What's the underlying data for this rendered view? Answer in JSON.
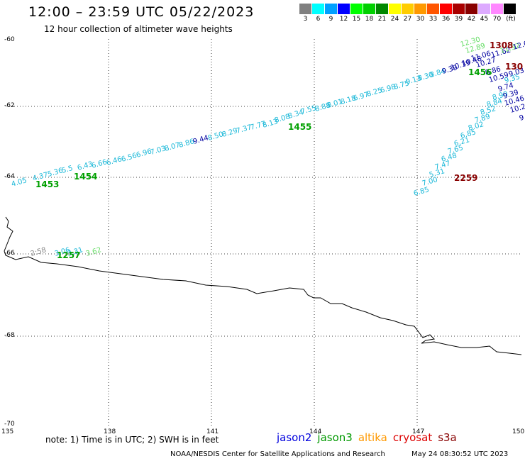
{
  "header": {
    "title": "12:00 – 23:59 UTC 05/22/2023",
    "subtitle": "12 hour collection of altimeter wave heights"
  },
  "legend": {
    "unit": "(ft)",
    "items": [
      {
        "label": "3",
        "color": "#808080"
      },
      {
        "label": "6",
        "color": "#00ffff"
      },
      {
        "label": "9",
        "color": "#00a0ff"
      },
      {
        "label": "12",
        "color": "#0000ff"
      },
      {
        "label": "15",
        "color": "#00ff00"
      },
      {
        "label": "18",
        "color": "#00d000"
      },
      {
        "label": "21",
        "color": "#008800"
      },
      {
        "label": "24",
        "color": "#ffff00"
      },
      {
        "label": "27",
        "color": "#ffcc00"
      },
      {
        "label": "30",
        "color": "#ff9900"
      },
      {
        "label": "33",
        "color": "#ff5500"
      },
      {
        "label": "36",
        "color": "#ff0000"
      },
      {
        "label": "39",
        "color": "#aa0000"
      },
      {
        "label": "42",
        "color": "#880000"
      },
      {
        "label": "45",
        "color": "#ddaaff"
      },
      {
        "label": "70",
        "color": "#ff88ff"
      },
      {
        "label": "",
        "color": "#000000"
      }
    ]
  },
  "axes": {
    "lat_labels": [
      "-60",
      "-62",
      "-64",
      "-66",
      "-68",
      "-70"
    ],
    "lon_labels": [
      "135",
      "138",
      "141",
      "144",
      "147",
      "150"
    ]
  },
  "track_colors": {
    "cyan": "#1ab8d8",
    "darkblue": "#0000a0",
    "green": "#00a000",
    "lightgreen": "#66dd66",
    "darkred": "#880000",
    "gray": "#888888"
  },
  "tracks": [
    {
      "text": "4.05",
      "color": "cyan"
    },
    {
      "text": "4.37",
      "color": "cyan"
    },
    {
      "text": "5.36",
      "color": "cyan"
    },
    {
      "text": "5.5",
      "color": "cyan"
    },
    {
      "text": "6.43",
      "color": "cyan"
    },
    {
      "text": "6.66",
      "color": "cyan"
    },
    {
      "text": "6.46",
      "color": "cyan"
    },
    {
      "text": "6.56",
      "color": "cyan"
    },
    {
      "text": "6.96",
      "color": "cyan"
    },
    {
      "text": "7.03",
      "color": "cyan"
    },
    {
      "text": "8.07",
      "color": "cyan"
    },
    {
      "text": "8.86",
      "color": "cyan"
    },
    {
      "text": "9.44",
      "color": "darkblue"
    },
    {
      "text": "8.50",
      "color": "cyan"
    },
    {
      "text": "8.29",
      "color": "cyan"
    },
    {
      "text": "7.37",
      "color": "cyan"
    },
    {
      "text": "7.77",
      "color": "cyan"
    },
    {
      "text": "8.13",
      "color": "cyan"
    },
    {
      "text": "8.08",
      "color": "cyan"
    },
    {
      "text": "8.34",
      "color": "cyan"
    },
    {
      "text": "7.55",
      "color": "cyan"
    },
    {
      "text": "8.88",
      "color": "cyan"
    },
    {
      "text": "8.01",
      "color": "cyan"
    },
    {
      "text": "8.18",
      "color": "cyan"
    },
    {
      "text": "6.97",
      "color": "cyan"
    },
    {
      "text": "8.25",
      "color": "cyan"
    },
    {
      "text": "6.98",
      "color": "cyan"
    },
    {
      "text": "8.75",
      "color": "cyan"
    },
    {
      "text": "9.13",
      "color": "cyan"
    },
    {
      "text": "8.30",
      "color": "cyan"
    },
    {
      "text": "8.84",
      "color": "cyan"
    },
    {
      "text": "9.39",
      "color": "darkblue"
    },
    {
      "text": "10.19",
      "color": "darkblue"
    },
    {
      "text": "10.48",
      "color": "darkblue"
    },
    {
      "text": "10.27",
      "color": "darkblue"
    },
    {
      "text": "11.06",
      "color": "darkblue"
    },
    {
      "text": "11.62",
      "color": "darkblue"
    },
    {
      "text": "12.30",
      "color": "lightgreen"
    },
    {
      "text": "12.89",
      "color": "lightgreen"
    },
    {
      "text": "11.92",
      "color": "lightgreen"
    },
    {
      "text": "12.0",
      "color": "darkblue"
    },
    {
      "text": "8.86",
      "color": "darkblue"
    },
    {
      "text": "9.03",
      "color": "darkblue"
    },
    {
      "text": "10.59",
      "color": "darkblue"
    },
    {
      "text": "9.35",
      "color": "cyan"
    },
    {
      "text": "9.74",
      "color": "darkblue"
    },
    {
      "text": "8.90",
      "color": "cyan"
    },
    {
      "text": "9.39",
      "color": "darkblue"
    },
    {
      "text": "8.84",
      "color": "cyan"
    },
    {
      "text": "10.46",
      "color": "darkblue"
    },
    {
      "text": "10.2",
      "color": "darkblue"
    },
    {
      "text": "9",
      "color": "darkblue"
    },
    {
      "text": "8.52",
      "color": "cyan"
    },
    {
      "text": "7.89",
      "color": "cyan"
    },
    {
      "text": "8.02",
      "color": "cyan"
    },
    {
      "text": "6.85",
      "color": "cyan"
    },
    {
      "text": "6.21",
      "color": "cyan"
    },
    {
      "text": "7.65",
      "color": "cyan"
    },
    {
      "text": "6.48",
      "color": "cyan"
    },
    {
      "text": "7.47",
      "color": "cyan"
    },
    {
      "text": "5.31",
      "color": "cyan"
    },
    {
      "text": "7.00",
      "color": "cyan"
    },
    {
      "text": "6.85",
      "color": "cyan"
    },
    {
      "text": "2:58",
      "color": "gray"
    },
    {
      "text": "3.06",
      "color": "cyan"
    },
    {
      "text": "3.31",
      "color": "cyan"
    },
    {
      "text": "3.62",
      "color": "lightgreen"
    }
  ],
  "time_labels": [
    {
      "text": "1453",
      "color": "green"
    },
    {
      "text": "1454",
      "color": "green"
    },
    {
      "text": "1455",
      "color": "green"
    },
    {
      "text": "1456",
      "color": "green"
    },
    {
      "text": "1308",
      "color": "darkred"
    },
    {
      "text": "130",
      "color": "darkred"
    },
    {
      "text": "2259",
      "color": "darkred"
    },
    {
      "text": "1257",
      "color": "green"
    }
  ],
  "notes": {
    "note": "note:  1) Time is in UTC;  2) SWH is in feet",
    "footer_left": "NOAA/NESDIS Center for Satellite Applications and Research",
    "footer_right": "May 24 08:30:52 UTC 2023"
  },
  "satellites": [
    {
      "name": "jason2",
      "color": "#0000dd"
    },
    {
      "name": "jason3",
      "color": "#009900"
    },
    {
      "name": "altika",
      "color": "#ff9900"
    },
    {
      "name": "cryosat",
      "color": "#dd0000"
    },
    {
      "name": "s3a",
      "color": "#880000"
    }
  ]
}
